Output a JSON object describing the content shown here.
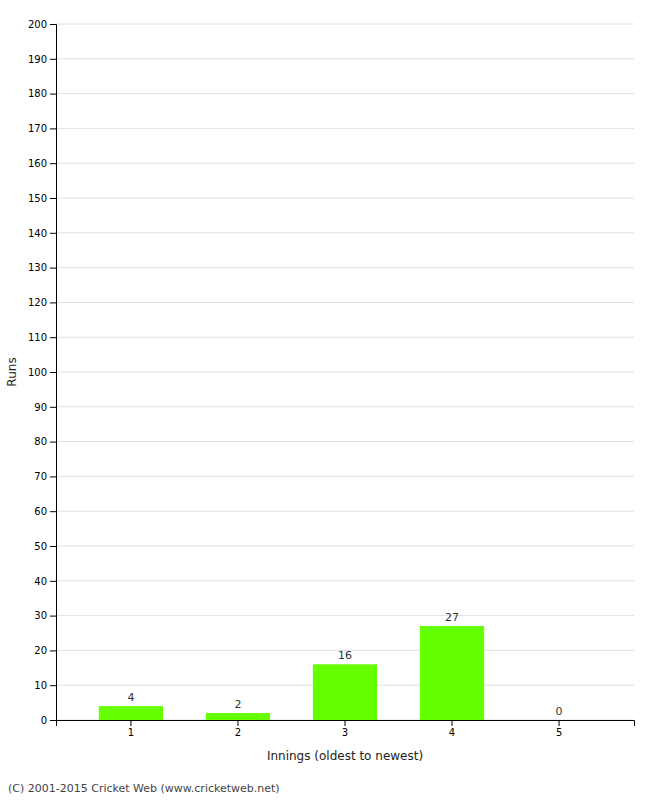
{
  "chart_data": {
    "type": "bar",
    "xlabel": "Innings (oldest to newest)",
    "ylabel": "Runs",
    "categories": [
      1,
      2,
      3,
      4,
      5
    ],
    "values": [
      4,
      2,
      16,
      27,
      0
    ],
    "color": "#66ff00",
    "ylim": [
      0,
      200
    ],
    "yticks": [
      0,
      10,
      20,
      30,
      40,
      50,
      60,
      70,
      80,
      90,
      100,
      110,
      120,
      130,
      140,
      150,
      160,
      170,
      180,
      190,
      200
    ],
    "grid": true,
    "data_labels": true,
    "annotations": [
      "(C) 2001-2015 Cricket Web (www.cricketweb.net)"
    ]
  }
}
